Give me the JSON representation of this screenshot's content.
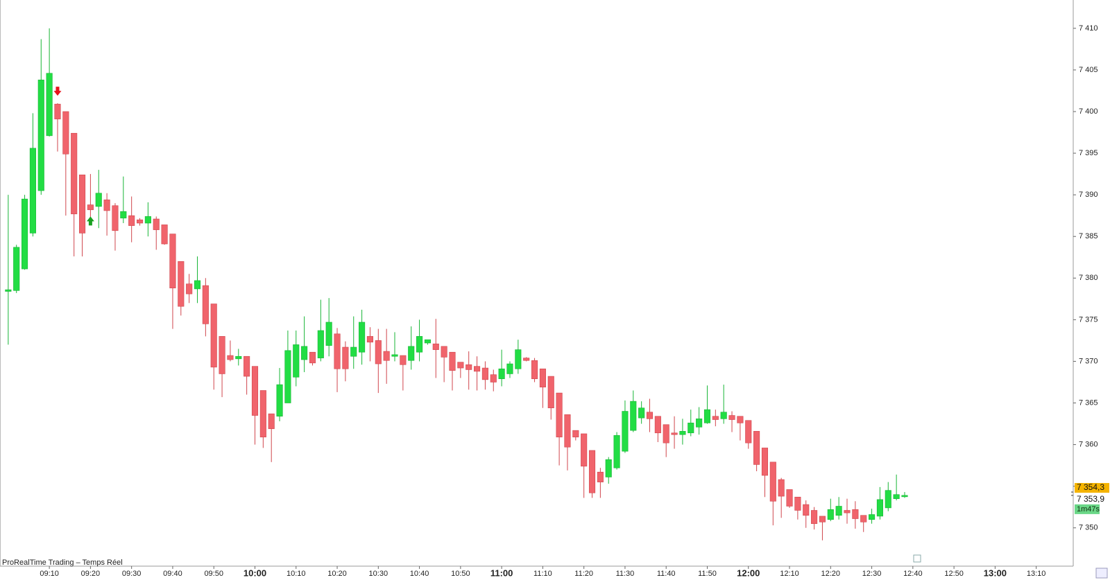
{
  "chart_data": {
    "type": "candlestick",
    "title": "ProRealTime Trading – Temps Réel",
    "up_color": "#22dd44",
    "down_color": "#f0646c",
    "x": [
      "09:00",
      "09:02",
      "09:04",
      "09:06",
      "09:08",
      "09:10",
      "09:12",
      "09:14",
      "09:16",
      "09:18",
      "09:20",
      "09:22",
      "09:24",
      "09:26",
      "09:28",
      "09:30",
      "09:32",
      "09:34",
      "09:36",
      "09:38",
      "09:40",
      "09:42",
      "09:44",
      "09:46",
      "09:48",
      "09:50",
      "09:52",
      "09:54",
      "09:56",
      "09:58",
      "10:00",
      "10:02",
      "10:04",
      "10:06",
      "10:08",
      "10:10",
      "10:12",
      "10:14",
      "10:16",
      "10:18",
      "10:20",
      "10:22",
      "10:24",
      "10:26",
      "10:28",
      "10:30",
      "10:32",
      "10:34",
      "10:36",
      "10:38",
      "10:40",
      "10:42",
      "10:44",
      "10:46",
      "10:48",
      "10:50",
      "10:52",
      "10:54",
      "10:56",
      "10:58",
      "11:00",
      "11:02",
      "11:04",
      "11:06",
      "11:08",
      "11:10",
      "11:12",
      "11:14",
      "11:16",
      "11:18",
      "11:20",
      "11:22",
      "11:24",
      "11:26",
      "11:28",
      "11:30",
      "11:32",
      "11:34",
      "11:36",
      "11:38",
      "11:40",
      "11:42",
      "11:44",
      "11:46",
      "11:48",
      "11:50",
      "11:52",
      "11:54",
      "11:56",
      "11:58",
      "12:00",
      "12:02",
      "12:04",
      "12:06",
      "12:08",
      "12:10",
      "12:12",
      "12:14",
      "12:16",
      "12:18",
      "12:20",
      "12:22",
      "12:24",
      "12:26",
      "12:28",
      "12:30",
      "12:32",
      "12:34",
      "12:36",
      "12:38"
    ],
    "open": [
      7378.4,
      7378.5,
      7381.1,
      7385.4,
      7390.5,
      7397.1,
      7400.9,
      7400,
      7397.4,
      7392.4,
      7388.8,
      7388.6,
      7389.4,
      7388.7,
      7387.2,
      7387.5,
      7387,
      7386.6,
      7387.1,
      7386.4,
      7385.3,
      7382,
      7379.3,
      7378.7,
      7379.1,
      7376.9,
      7373,
      7370.7,
      7370.3,
      7370.6,
      7369.4,
      7366.5,
      7363.7,
      7363.4,
      7365,
      7368.1,
      7370.2,
      7371.1,
      7370.4,
      7371.9,
      7373.3,
      7371.7,
      7370.6,
      7371.1,
      7373,
      7372.5,
      7371.2,
      7370.6,
      7370.7,
      7370.1,
      7371.1,
      7372.2,
      7372.1,
      7371.8,
      7371.1,
      7369.9,
      7369.6,
      7369.4,
      7369.2,
      7368.4,
      7367.9,
      7368.5,
      7369.1,
      7370.4,
      7370.1,
      7369.1,
      7368.2,
      7366.2,
      7363.6,
      7361.7,
      7361.3,
      7359.3,
      7356.7,
      7356.1,
      7357.2,
      7359.2,
      7361.7,
      7363.2,
      7363.9,
      7363.4,
      7362.4,
      7361.4,
      7361.2,
      7361.4,
      7362.1,
      7362.6,
      7363.4,
      7363.1,
      7363.5,
      7363.4,
      7362.9,
      7361.6,
      7359.6,
      7357.9,
      7355.8,
      7354.6,
      7353.7,
      7352.8,
      7352.1,
      7351.4,
      7351,
      7351.5,
      7352.1,
      7352.2,
      7351.5,
      7351,
      7351.4,
      7352.4,
      7353.5,
      7353.8
    ],
    "high": [
      7390,
      7384,
      7390,
      7399.8,
      7408.7,
      7410,
      7401,
      7400,
      7397.4,
      7392.4,
      7392.5,
      7393,
      7390.2,
      7389,
      7392.2,
      7389.8,
      7387.2,
      7389.1,
      7387.4,
      7386.4,
      7385.3,
      7382,
      7380.5,
      7382.6,
      7380,
      7376.9,
      7373,
      7372.5,
      7371.5,
      7370.6,
      7369.4,
      7366.5,
      7363.7,
      7369.2,
      7373.7,
      7373.7,
      7375.4,
      7371.1,
      7377.4,
      7377.6,
      7374,
      7372.4,
      7375.4,
      7376.2,
      7374.1,
      7373.9,
      7373.9,
      7373.5,
      7370.7,
      7374.2,
      7375,
      7372.6,
      7375.1,
      7371.8,
      7371.1,
      7369.9,
      7371.2,
      7370.6,
      7370,
      7369,
      7371.4,
      7370,
      7372.6,
      7370.5,
      7370.4,
      7369.1,
      7368.2,
      7366.2,
      7363.6,
      7361.7,
      7361.3,
      7359.3,
      7357.2,
      7358.5,
      7361.5,
      7365.3,
      7366.5,
      7365.2,
      7365.5,
      7363.4,
      7362.4,
      7363.4,
      7363.1,
      7364.2,
      7364.5,
      7367.1,
      7364.2,
      7367.2,
      7364,
      7363.4,
      7362.9,
      7361.6,
      7359.6,
      7357.9,
      7356,
      7354.6,
      7353.7,
      7353.3,
      7352.5,
      7351.4,
      7353.5,
      7353.7,
      7353.5,
      7353.2,
      7351.5,
      7352.3,
      7354.9,
      7355.5,
      7356.4,
      7354.3
    ],
    "low": [
      7372,
      7378.2,
      7381,
      7385,
      7390,
      7397,
      7395.2,
      7387.5,
      7382.6,
      7382.6,
      7387,
      7386,
      7385.1,
      7383.3,
      7386.6,
      7384.3,
      7386.3,
      7385,
      7383.4,
      7384,
      7373.9,
      7375.5,
      7377,
      7377,
      7373,
      7366.6,
      7365.7,
      7370,
      7369.5,
      7366,
      7360,
      7359.6,
      7357.9,
      7362.8,
      7365,
      7367,
      7368.7,
      7369.5,
      7370,
      7370.6,
      7366.3,
      7367.6,
      7369.1,
      7369.6,
      7370,
      7366.2,
      7367.3,
      7370,
      7366.5,
      7369,
      7370,
      7372,
      7368,
      7367.5,
      7366.5,
      7368,
      7366.6,
      7366.5,
      7366.6,
      7366.4,
      7367,
      7368,
      7368.5,
      7370,
      7367.5,
      7364.4,
      7363,
      7357.5,
      7356.9,
      7360.5,
      7353.6,
      7353.6,
      7353.6,
      7355.3,
      7357,
      7359,
      7361.5,
      7362.5,
      7361.5,
      7360.3,
      7358.5,
      7359.5,
      7360,
      7361,
      7361.2,
      7362.5,
      7362.2,
      7362.5,
      7361.5,
      7360.5,
      7359.5,
      7356.8,
      7353.7,
      7350.3,
      7351.2,
      7352.4,
      7351,
      7350,
      7349.8,
      7348.5,
      7350.8,
      7351,
      7350.5,
      7349.9,
      7349.5,
      7350.5,
      7351,
      7352,
      7353.3,
      7353.6
    ],
    "close": [
      7378.6,
      7383.7,
      7389.5,
      7395.6,
      7403.8,
      7404.6,
      7399.1,
      7394.9,
      7387.7,
      7385.4,
      7388.2,
      7390.2,
      7388.1,
      7385.7,
      7388,
      7386.3,
      7386.6,
      7387.4,
      7385.8,
      7384.1,
      7378.8,
      7376.6,
      7378.1,
      7379.7,
      7374.5,
      7369.3,
      7368.5,
      7370.2,
      7370.6,
      7368.2,
      7363.5,
      7360.9,
      7361.9,
      7367.2,
      7371.3,
      7372,
      7371.8,
      7369.8,
      7373.7,
      7374.7,
      7369.1,
      7369.1,
      7371.7,
      7374.7,
      7372.3,
      7369.7,
      7370.1,
      7370.8,
      7369.6,
      7371.8,
      7373,
      7372.6,
      7371.4,
      7370.5,
      7368.9,
      7369.2,
      7369,
      7368.8,
      7367.8,
      7367.5,
      7369.1,
      7369.7,
      7371.4,
      7370.1,
      7367.9,
      7366.9,
      7364.4,
      7360.9,
      7359.7,
      7360.9,
      7357.4,
      7354.2,
      7355.5,
      7358.2,
      7361.1,
      7364,
      7365.2,
      7364.4,
      7363.1,
      7361.4,
      7360.2,
      7361.2,
      7361.6,
      7362.6,
      7363.1,
      7364.2,
      7363,
      7363.9,
      7363,
      7362.6,
      7360.2,
      7357.6,
      7356.3,
      7353.2,
      7353.8,
      7352.6,
      7352.1,
      7351.5,
      7350.5,
      7350.7,
      7352.2,
      7352.6,
      7351.8,
      7351.1,
      7350.7,
      7351.6,
      7353.4,
      7354.5,
      7354,
      7353.9
    ],
    "xlim": [
      "08:58",
      "13:19"
    ],
    "xticks": [
      "09:10",
      "09:20",
      "09:30",
      "09:40",
      "09:50",
      "10:00",
      "10:10",
      "10:20",
      "10:30",
      "10:40",
      "10:50",
      "11:00",
      "11:10",
      "11:20",
      "11:30",
      "11:40",
      "11:50",
      "12:00",
      "12:10",
      "12:20",
      "12:30",
      "12:40",
      "12:50",
      "13:00",
      "13:10"
    ],
    "bold_hour_ticks": true,
    "ylim": [
      7345.4,
      7413.4
    ],
    "yticks": [
      {
        "value": 7350,
        "label": "7 350"
      },
      {
        "value": 7355,
        "label": "7 355"
      },
      {
        "value": 7360,
        "label": "7 360"
      },
      {
        "value": 7365,
        "label": "7 365"
      },
      {
        "value": 7370,
        "label": "7 370"
      },
      {
        "value": 7375,
        "label": "7 375"
      },
      {
        "value": 7380,
        "label": "7 380"
      },
      {
        "value": 7385,
        "label": "7 385"
      },
      {
        "value": 7390,
        "label": "7 390"
      },
      {
        "value": 7395,
        "label": "7 395"
      },
      {
        "value": 7400,
        "label": "7 400"
      },
      {
        "value": 7405,
        "label": "7 405"
      },
      {
        "value": 7410,
        "label": "7 410"
      }
    ],
    "price_labels": [
      {
        "value": 7354.3,
        "label": "7 354,3",
        "color": "#f5b400"
      },
      {
        "value": 7353.9,
        "label": "7 353,9",
        "color": "#ffffff"
      }
    ],
    "timer": "1m47s",
    "signals": [
      {
        "x": "09:12",
        "price": 7402.4,
        "color": "#e8141c"
      },
      {
        "x": "09:20",
        "price": 7386.9,
        "color": "#18a020"
      }
    ]
  }
}
